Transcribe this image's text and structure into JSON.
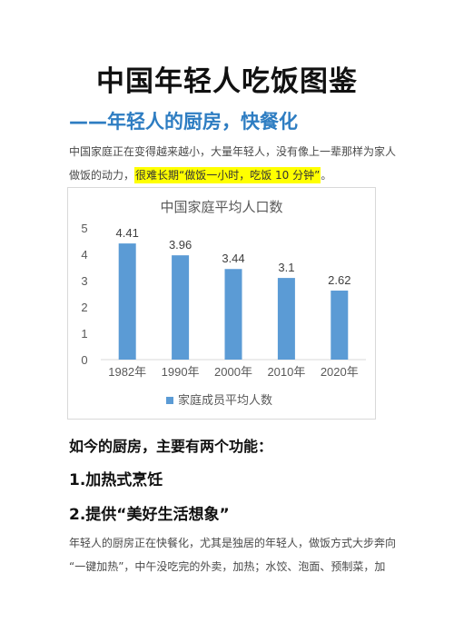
{
  "page": {
    "title": "中国年轻人吃饭图鉴",
    "subtitle": "——年轻人的厨房，快餐化",
    "intro_part1": "中国家庭正在变得越来越小，大量年轻人，没有像上一辈那样为家人做饭的动力，",
    "intro_highlight": "很难长期“做饭一小时，吃饭 10 分钟”",
    "intro_end": "。",
    "section_heading": "如今的厨房，主要有两个功能：",
    "function_1": "1.加热式烹饪",
    "function_2": "2.提供“美好生活想象”",
    "closing_line1": "年轻人的厨房正在快餐化，尤其是独居的年轻人，做饭方式大步奔向",
    "closing_line2": "“一键加热”，中午没吃完的外卖，加热；水饺、泡面、预制菜，加"
  },
  "colors": {
    "accent": "#2e7dc2",
    "bar": "#5b9bd5",
    "highlight": "#ffff00"
  },
  "chart_data": {
    "type": "bar",
    "title": "中国家庭平均人口数",
    "categories": [
      "1982年",
      "1990年",
      "2000年",
      "2010年",
      "2020年"
    ],
    "series": [
      {
        "name": "家庭成员平均人数",
        "values": [
          4.41,
          3.96,
          3.44,
          3.1,
          2.62
        ]
      }
    ],
    "ylim": [
      0,
      5
    ],
    "yticks": [
      0,
      1,
      2,
      3,
      4,
      5
    ],
    "grid": false,
    "legend": "bottom"
  }
}
